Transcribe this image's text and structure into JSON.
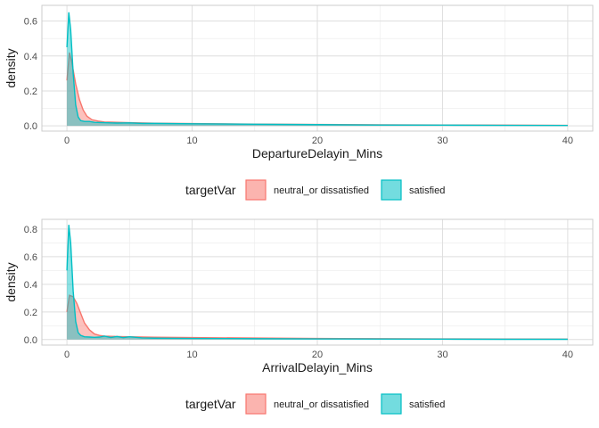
{
  "chart_data": [
    {
      "type": "area",
      "xlabel": "DepartureDelayin_Mins",
      "ylabel": "density",
      "xlim": [
        -2,
        42
      ],
      "ylim": [
        -0.03,
        0.69
      ],
      "x_ticks": [
        0,
        10,
        20,
        30,
        40
      ],
      "y_ticks": [
        0.0,
        0.2,
        0.4,
        0.6
      ],
      "y_tick_labels": [
        "0.0",
        "0.2",
        "0.4",
        "0.6"
      ],
      "grid": true,
      "legend": {
        "title": "targetVar",
        "position": "bottom"
      },
      "series": [
        {
          "name": "neutral_or dissatisfied",
          "color": "#F8766D",
          "x": [
            0,
            0.2,
            0.4,
            0.7,
            1.0,
            1.3,
            1.6,
            2.0,
            2.5,
            3.0,
            4.0,
            5.0,
            7.0,
            10.0,
            15.0,
            20.0,
            25.0,
            30.0,
            35.0,
            40.0
          ],
          "y": [
            0.26,
            0.42,
            0.36,
            0.24,
            0.15,
            0.09,
            0.055,
            0.035,
            0.027,
            0.022,
            0.02,
            0.018,
            0.015,
            0.013,
            0.01,
            0.008,
            0.006,
            0.005,
            0.004,
            0.003
          ]
        },
        {
          "name": "satisfied",
          "color": "#00BFC4",
          "x": [
            0,
            0.15,
            0.3,
            0.5,
            0.7,
            0.9,
            1.1,
            1.4,
            1.8,
            2.2,
            3.0,
            4.0,
            5.0,
            6.0,
            7.0,
            10.0,
            15.0,
            20.0,
            25.0,
            30.0,
            35.0,
            40.0
          ],
          "y": [
            0.45,
            0.65,
            0.55,
            0.3,
            0.12,
            0.05,
            0.03,
            0.025,
            0.025,
            0.02,
            0.018,
            0.016,
            0.017,
            0.014,
            0.014,
            0.012,
            0.009,
            0.007,
            0.005,
            0.004,
            0.003,
            0.002
          ]
        }
      ]
    },
    {
      "type": "area",
      "xlabel": "ArrivalDelayin_Mins",
      "ylabel": "density",
      "xlim": [
        -2,
        42
      ],
      "ylim": [
        -0.04,
        0.87
      ],
      "x_ticks": [
        0,
        10,
        20,
        30,
        40
      ],
      "y_ticks": [
        0.0,
        0.2,
        0.4,
        0.6,
        0.8
      ],
      "y_tick_labels": [
        "0.0",
        "0.2",
        "0.4",
        "0.6",
        "0.8"
      ],
      "grid": true,
      "legend": {
        "title": "targetVar",
        "position": "bottom"
      },
      "series": [
        {
          "name": "neutral_or dissatisfied",
          "color": "#F8766D",
          "x": [
            0,
            0.2,
            0.5,
            0.8,
            1.1,
            1.4,
            1.8,
            2.2,
            2.6,
            3.0,
            4.0,
            5.0,
            7.0,
            10.0,
            15.0,
            20.0,
            25.0,
            30.0,
            35.0,
            40.0
          ],
          "y": [
            0.2,
            0.32,
            0.31,
            0.26,
            0.19,
            0.12,
            0.07,
            0.04,
            0.03,
            0.025,
            0.022,
            0.02,
            0.017,
            0.014,
            0.011,
            0.008,
            0.006,
            0.005,
            0.004,
            0.003
          ]
        },
        {
          "name": "satisfied",
          "color": "#00BFC4",
          "x": [
            0,
            0.15,
            0.3,
            0.5,
            0.7,
            0.9,
            1.1,
            1.4,
            1.8,
            2.2,
            2.6,
            3.0,
            3.5,
            4.0,
            4.5,
            5.0,
            6.0,
            7.0,
            10.0,
            15.0,
            20.0,
            25.0,
            30.0,
            35.0,
            40.0
          ],
          "y": [
            0.5,
            0.83,
            0.7,
            0.35,
            0.13,
            0.05,
            0.03,
            0.02,
            0.018,
            0.016,
            0.018,
            0.025,
            0.015,
            0.022,
            0.014,
            0.02,
            0.012,
            0.01,
            0.008,
            0.006,
            0.005,
            0.004,
            0.003,
            0.002,
            0.002
          ]
        }
      ]
    }
  ]
}
